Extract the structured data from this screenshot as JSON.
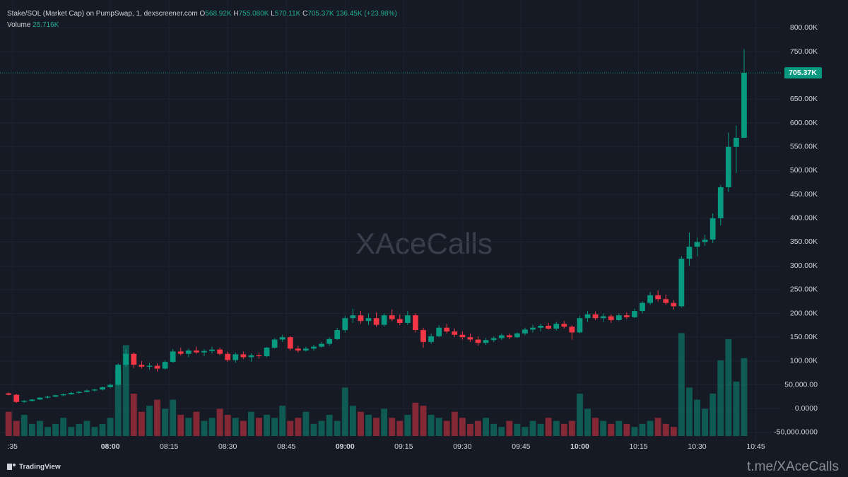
{
  "chart_data": {
    "type": "candlestick",
    "title": "Stake/SOL (Market Cap) on PumpSwap, 1, dexscreener.com",
    "ohlc_labels": [
      "O",
      "H",
      "L",
      "C"
    ],
    "ohlc_values": [
      "568.92K",
      "755.080K",
      "570.11K",
      "705.37K"
    ],
    "change": "136.45K (+23.98%)",
    "volume_label": "Volume",
    "volume_value": "25.716K",
    "last_price_label": "705.37K",
    "watermark": "XAceCalls",
    "brand": "TradingView",
    "footer": "t.me/XAceCalls",
    "up_color": "#089981",
    "down_color": "#f23645",
    "grid": true,
    "ylim": [
      -69500,
      858400
    ],
    "yticks": [
      {
        "value": 800000,
        "label": "800.00K"
      },
      {
        "value": 750000,
        "label": "750.00K"
      },
      {
        "value": 650000,
        "label": "650.00K"
      },
      {
        "value": 600000,
        "label": "600.00K"
      },
      {
        "value": 550000,
        "label": "550.00K"
      },
      {
        "value": 500000,
        "label": "500.00K"
      },
      {
        "value": 450000,
        "label": "450.00K"
      },
      {
        "value": 400000,
        "label": "400.00K"
      },
      {
        "value": 350000,
        "label": "350.00K"
      },
      {
        "value": 300000,
        "label": "300.00K"
      },
      {
        "value": 250000,
        "label": "250.00K"
      },
      {
        "value": 200000,
        "label": "200.00K"
      },
      {
        "value": 150000,
        "label": "150.00K"
      },
      {
        "value": 100000,
        "label": "100.00K"
      },
      {
        "value": 50000,
        "label": "50,000.00"
      },
      {
        "value": 0,
        "label": "0.0000"
      },
      {
        "value": -50000,
        "label": "-50,000.0000"
      }
    ],
    "xlim": [
      -1.1,
      98.7
    ],
    "xticks": [
      {
        "value": 0.5,
        "label": ":35"
      },
      {
        "value": 13,
        "label": "08:00"
      },
      {
        "value": 20.5,
        "label": "08:15"
      },
      {
        "value": 28,
        "label": "08:30"
      },
      {
        "value": 35.5,
        "label": "08:45"
      },
      {
        "value": 43,
        "label": "09:00"
      },
      {
        "value": 50.5,
        "label": "09:15"
      },
      {
        "value": 58,
        "label": "09:30"
      },
      {
        "value": 65.5,
        "label": "09:45"
      },
      {
        "value": 73,
        "label": "10:00"
      },
      {
        "value": 80.5,
        "label": "10:15"
      },
      {
        "value": 88,
        "label": "10:30"
      },
      {
        "value": 95.5,
        "label": "10:45"
      }
    ],
    "volume_ylim": [
      0,
      144000
    ],
    "ohlc": [
      [
        32000,
        34000,
        28000,
        29000
      ],
      [
        29000,
        31000,
        12000,
        14000
      ],
      [
        14000,
        18000,
        12000,
        16000
      ],
      [
        16000,
        20000,
        15000,
        19000
      ],
      [
        19000,
        24000,
        18000,
        23000
      ],
      [
        23000,
        27000,
        21000,
        25000
      ],
      [
        25000,
        29000,
        24000,
        28000
      ],
      [
        28000,
        32000,
        26000,
        30000
      ],
      [
        30000,
        35000,
        29000,
        33000
      ],
      [
        33000,
        37000,
        31000,
        35000
      ],
      [
        35000,
        40000,
        34000,
        38000
      ],
      [
        38000,
        42000,
        36000,
        40000
      ],
      [
        40000,
        46000,
        38000,
        45000
      ],
      [
        45000,
        52000,
        43000,
        50000
      ],
      [
        50000,
        95000,
        48000,
        92000
      ],
      [
        92000,
        125000,
        88000,
        115000
      ],
      [
        115000,
        118000,
        85000,
        92000
      ],
      [
        92000,
        100000,
        84000,
        88000
      ],
      [
        88000,
        96000,
        82000,
        90000
      ],
      [
        90000,
        95000,
        78000,
        84000
      ],
      [
        84000,
        102000,
        82000,
        98000
      ],
      [
        98000,
        125000,
        96000,
        120000
      ],
      [
        120000,
        128000,
        112000,
        115000
      ],
      [
        115000,
        126000,
        108000,
        122000
      ],
      [
        122000,
        130000,
        115000,
        118000
      ],
      [
        118000,
        125000,
        110000,
        121000
      ],
      [
        121000,
        130000,
        116000,
        124000
      ],
      [
        124000,
        128000,
        112000,
        115000
      ],
      [
        115000,
        120000,
        98000,
        102000
      ],
      [
        102000,
        118000,
        96000,
        114000
      ],
      [
        114000,
        120000,
        104000,
        108000
      ],
      [
        108000,
        116000,
        98000,
        112000
      ],
      [
        112000,
        118000,
        105000,
        110000
      ],
      [
        110000,
        130000,
        108000,
        128000
      ],
      [
        128000,
        148000,
        126000,
        145000
      ],
      [
        145000,
        155000,
        140000,
        150000
      ],
      [
        150000,
        152000,
        122000,
        126000
      ],
      [
        126000,
        132000,
        118000,
        122000
      ],
      [
        122000,
        130000,
        120000,
        126000
      ],
      [
        126000,
        134000,
        122000,
        130000
      ],
      [
        130000,
        140000,
        128000,
        136000
      ],
      [
        136000,
        150000,
        132000,
        146000
      ],
      [
        146000,
        170000,
        144000,
        165000
      ],
      [
        165000,
        195000,
        160000,
        190000
      ],
      [
        190000,
        210000,
        180000,
        196000
      ],
      [
        196000,
        205000,
        178000,
        184000
      ],
      [
        184000,
        200000,
        176000,
        190000
      ],
      [
        190000,
        202000,
        172000,
        176000
      ],
      [
        176000,
        200000,
        172000,
        196000
      ],
      [
        196000,
        208000,
        184000,
        188000
      ],
      [
        188000,
        198000,
        175000,
        180000
      ],
      [
        180000,
        205000,
        176000,
        196000
      ],
      [
        196000,
        200000,
        160000,
        165000
      ],
      [
        165000,
        170000,
        128000,
        140000
      ],
      [
        140000,
        158000,
        136000,
        152000
      ],
      [
        152000,
        175000,
        150000,
        170000
      ],
      [
        170000,
        178000,
        158000,
        162000
      ],
      [
        162000,
        168000,
        150000,
        155000
      ],
      [
        155000,
        162000,
        145000,
        150000
      ],
      [
        150000,
        158000,
        140000,
        145000
      ],
      [
        145000,
        152000,
        132000,
        138000
      ],
      [
        138000,
        148000,
        134000,
        144000
      ],
      [
        144000,
        152000,
        140000,
        148000
      ],
      [
        148000,
        158000,
        144000,
        154000
      ],
      [
        154000,
        158000,
        146000,
        150000
      ],
      [
        150000,
        160000,
        148000,
        158000
      ],
      [
        158000,
        170000,
        154000,
        166000
      ],
      [
        166000,
        176000,
        160000,
        170000
      ],
      [
        170000,
        178000,
        162000,
        174000
      ],
      [
        174000,
        180000,
        166000,
        168000
      ],
      [
        168000,
        182000,
        164000,
        178000
      ],
      [
        178000,
        184000,
        168000,
        172000
      ],
      [
        172000,
        175000,
        145000,
        160000
      ],
      [
        160000,
        195000,
        158000,
        190000
      ],
      [
        190000,
        205000,
        182000,
        198000
      ],
      [
        198000,
        204000,
        186000,
        190000
      ],
      [
        190000,
        200000,
        182000,
        194000
      ],
      [
        194000,
        198000,
        180000,
        186000
      ],
      [
        186000,
        200000,
        184000,
        196000
      ],
      [
        196000,
        202000,
        188000,
        192000
      ],
      [
        192000,
        210000,
        190000,
        205000
      ],
      [
        205000,
        225000,
        200000,
        222000
      ],
      [
        222000,
        245000,
        218000,
        238000
      ],
      [
        238000,
        248000,
        225000,
        230000
      ],
      [
        230000,
        240000,
        218000,
        222000
      ],
      [
        222000,
        228000,
        208000,
        215000
      ],
      [
        215000,
        320000,
        212000,
        315000
      ],
      [
        315000,
        370000,
        300000,
        340000
      ],
      [
        340000,
        360000,
        320000,
        350000
      ],
      [
        350000,
        365000,
        342000,
        355000
      ],
      [
        355000,
        410000,
        348000,
        400000
      ],
      [
        400000,
        470000,
        385000,
        465000
      ],
      [
        465000,
        580000,
        455000,
        550000
      ],
      [
        550000,
        595000,
        495000,
        568920
      ],
      [
        568920,
        755080,
        570110,
        705370
      ]
    ],
    "volume": [
      8000,
      5000,
      7000,
      4000,
      5000,
      3000,
      4000,
      6000,
      3000,
      4000,
      5000,
      3000,
      4000,
      6000,
      22000,
      30000,
      14000,
      8000,
      10000,
      12000,
      9000,
      12000,
      7000,
      6000,
      8000,
      5000,
      6000,
      9000,
      7000,
      6000,
      5000,
      8000,
      6000,
      7000,
      6000,
      10000,
      5000,
      6000,
      8000,
      4000,
      5000,
      7000,
      5000,
      16000,
      10000,
      8000,
      7000,
      6000,
      9000,
      6000,
      5000,
      7000,
      11000,
      10000,
      7000,
      6000,
      5000,
      8000,
      6000,
      4000,
      5000,
      6000,
      4000,
      3000,
      5000,
      4000,
      3000,
      5000,
      4000,
      6000,
      5000,
      4000,
      5000,
      14000,
      9000,
      6000,
      5000,
      4000,
      5000,
      4000,
      3000,
      4000,
      5000,
      6000,
      4000,
      3000,
      34000,
      16000,
      12000,
      9000,
      14000,
      25000,
      32000,
      18000,
      25716
    ]
  }
}
